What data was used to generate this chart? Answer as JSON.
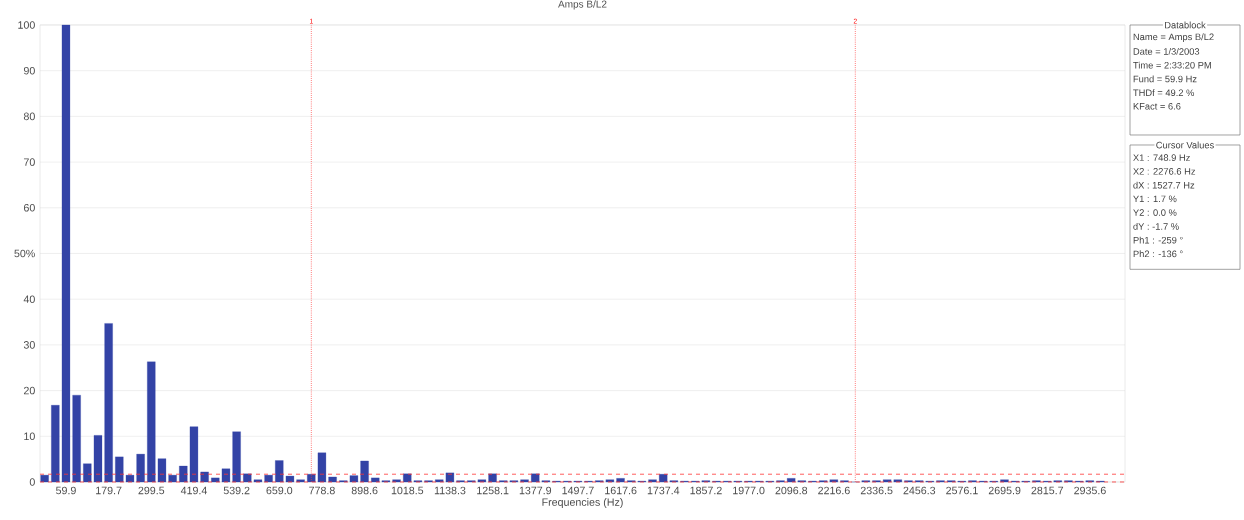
{
  "chart_data": {
    "type": "bar",
    "title": "Amps B/L2",
    "xlabel": "Frequencies (Hz)",
    "x": [
      0,
      29.95,
      59.9,
      89.85,
      119.8,
      149.75,
      179.7,
      209.65,
      239.6,
      269.55,
      299.5,
      329.45,
      359.4,
      389.35,
      419.3,
      449.25,
      479.2,
      509.15,
      539.1,
      569.05,
      599,
      628.95,
      658.9,
      688.85,
      718.8,
      748.75,
      778.7,
      808.65,
      838.6,
      868.55,
      898.5,
      928.45,
      958.4,
      988.35,
      1018.3,
      1048.25,
      1078.2,
      1108.15,
      1138.1,
      1168.05,
      1198,
      1227.95,
      1257.9,
      1287.85,
      1317.8,
      1347.75,
      1377.7,
      1407.65,
      1437.6,
      1467.55,
      1497.5,
      1527.45,
      1557.4,
      1587.35,
      1617.3,
      1647.25,
      1677.2,
      1707.15,
      1737.1,
      1767.05,
      1797,
      1826.95,
      1856.9,
      1886.85,
      1916.8,
      1946.75,
      1976.7,
      2006.65,
      2036.6,
      2066.55,
      2096.5,
      2126.45,
      2156.4,
      2186.35,
      2216.3,
      2246.25,
      2276.2,
      2306.15,
      2336.1,
      2366.05,
      2396,
      2425.95,
      2455.9,
      2485.85,
      2515.8,
      2545.75,
      2575.7,
      2605.65,
      2635.6,
      2665.55,
      2695.5,
      2725.45,
      2755.4,
      2785.35,
      2815.3,
      2845.25,
      2875.2,
      2905.15,
      2935.1,
      2965.05
    ],
    "values": [
      1.5,
      16.8,
      100,
      19.0,
      4.0,
      10.2,
      34.7,
      5.5,
      1.5,
      6.1,
      26.3,
      5.1,
      1.5,
      3.5,
      12.1,
      2.2,
      0.9,
      2.9,
      11.0,
      1.8,
      0.5,
      1.5,
      4.7,
      1.3,
      0.5,
      1.7,
      6.4,
      1.1,
      0.3,
      1.4,
      4.6,
      0.9,
      0.3,
      0.5,
      1.8,
      0.3,
      0.3,
      0.5,
      2.0,
      0.3,
      0.3,
      0.5,
      1.8,
      0.3,
      0.3,
      0.5,
      1.8,
      0.3,
      0.2,
      0.2,
      0.2,
      0.2,
      0.3,
      0.5,
      0.8,
      0.3,
      0.2,
      0.5,
      1.7,
      0.3,
      0.2,
      0.2,
      0.3,
      0.2,
      0.2,
      0.2,
      0.2,
      0.2,
      0.2,
      0.3,
      0.8,
      0.3,
      0.2,
      0.3,
      0.5,
      0.3,
      0.0,
      0.3,
      0.3,
      0.5,
      0.5,
      0.3,
      0.3,
      0.2,
      0.3,
      0.3,
      0.2,
      0.3,
      0.2,
      0.2,
      0.5,
      0.2,
      0.2,
      0.3,
      0.2,
      0.3,
      0.3,
      0.2,
      0.3,
      0.2
    ],
    "color": "#3343a6",
    "xlim": [
      -13,
      3034
    ],
    "xticks": [
      59.9,
      179.7,
      299.5,
      419.4,
      539.2,
      {
        "value": 659,
        "label": "659.0"
      },
      778.8,
      898.6,
      1018.5,
      1138.3,
      1258.1,
      1377.9,
      1497.7,
      1617.6,
      1737.4,
      1857.2,
      {
        "value": 1977,
        "label": "1977.0"
      },
      2096.8,
      2216.6,
      2336.5,
      2456.3,
      2576.1,
      2695.9,
      2815.7,
      2935.6
    ],
    "ylim": [
      0,
      100
    ],
    "yticks": [
      0,
      10,
      20,
      30,
      40,
      {
        "value": 50,
        "label": "50%"
      },
      60,
      70,
      80,
      90,
      100
    ],
    "grid": "y",
    "ref_lines": [
      {
        "axis": "x",
        "value": 748.9,
        "color": "#ff3333",
        "line_style": "dotted"
      },
      {
        "axis": "x",
        "value": 2276.6,
        "color": "#ff3333",
        "line_style": "dotted"
      },
      {
        "axis": "y",
        "value": 1.7,
        "color": "#ff3333",
        "line_style": "dashed"
      },
      {
        "axis": "y",
        "value": 0.0,
        "color": "#ff3333",
        "line_style": "dashed"
      }
    ],
    "annotations": [
      "Datablock",
      "Name = Amps B/L2",
      "Date = 1/3/2003",
      "Time = 2:33:20 PM",
      "Fund = 59.9 Hz",
      "THDf = 49.2 %",
      "KFact = 6.6",
      "Cursor Values",
      "X1 : 748.9 Hz",
      "X2 : 2276.6 Hz",
      "dX : 1527.7 Hz",
      "Y1 : 1.7 %",
      "Y2 : 0.0 %",
      "dY : -1.7 %",
      "Ph1 : -259 °",
      "Ph2 : -136 °",
      {
        "text": "1",
        "x": 748.9,
        "y": 100
      },
      {
        "text": "2",
        "x": 2276.6,
        "y": 100
      }
    ]
  }
}
